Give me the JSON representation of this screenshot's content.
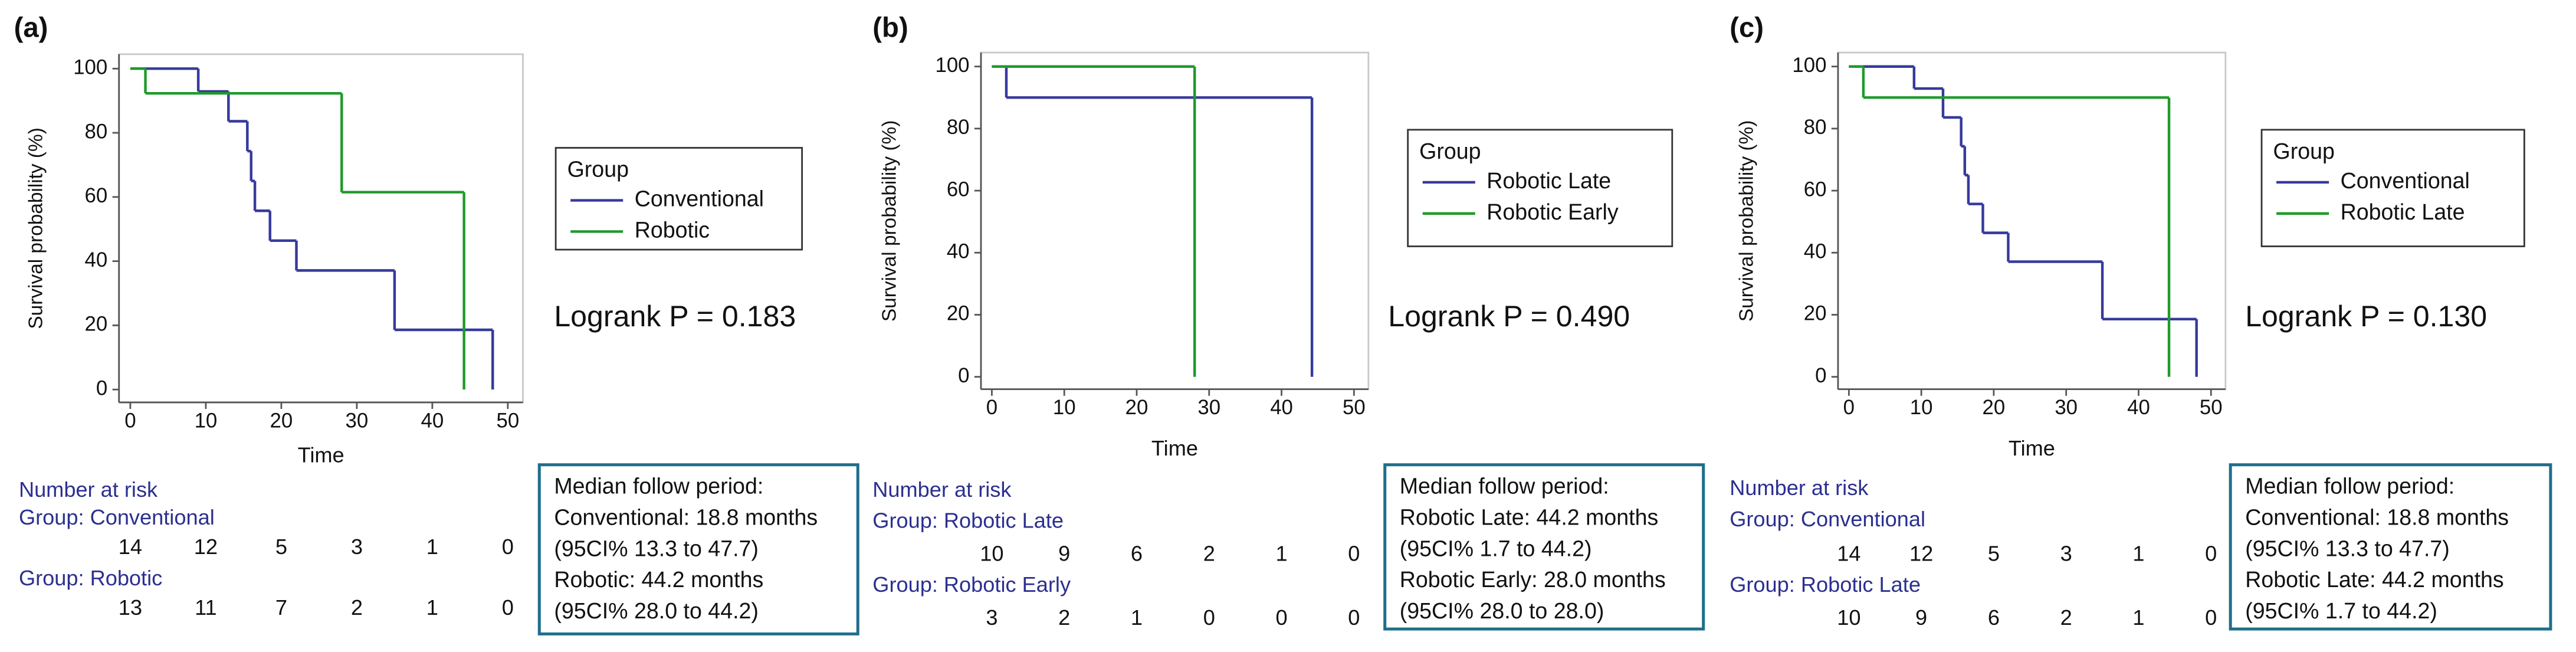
{
  "chart_data": [
    {
      "type": "kaplan-meier",
      "panel_label": "(a)",
      "xlabel": "Time",
      "ylabel": "Survival probability (%)",
      "xlim": [
        -1.5,
        52
      ],
      "ylim": [
        -4,
        104.5
      ],
      "xticks": [
        0,
        10,
        20,
        30,
        40,
        50
      ],
      "yticks": [
        0,
        20,
        40,
        60,
        80,
        100
      ],
      "legend_title": "Group",
      "series": [
        {
          "name": "Conventional",
          "color": "#363a9c",
          "x": [
            0,
            9,
            13,
            15.5,
            16,
            16.5,
            18.5,
            22,
            35,
            48
          ],
          "values": [
            100,
            92.9,
            83.6,
            74.3,
            65,
            55.7,
            46.4,
            37.1,
            18.6,
            0
          ]
        },
        {
          "name": "Robotic",
          "color": "#1f9a2a",
          "x": [
            0,
            2,
            28,
            44.2
          ],
          "values": [
            100,
            92.3,
            61.5,
            0
          ]
        }
      ],
      "annotation": "Logrank P = 0.183",
      "risk_table": {
        "title": "Number at risk",
        "groups": [
          {
            "label": "Group: Conventional",
            "counts": [
              14,
              12,
              5,
              3,
              1,
              0
            ]
          },
          {
            "label": "Group: Robotic",
            "counts": [
              13,
              11,
              7,
              2,
              1,
              0
            ]
          }
        ]
      },
      "median_box": [
        "Median follow period:",
        "Conventional: 18.8 months",
        "(95CI% 13.3 to 47.7)",
        "Robotic: 44.2 months",
        "(95CI% 28.0 to 44.2)"
      ]
    },
    {
      "type": "kaplan-meier",
      "panel_label": "(b)",
      "xlabel": "Time",
      "ylabel": "Survival probability (%)",
      "xlim": [
        -1.5,
        52
      ],
      "ylim": [
        -4,
        104.5
      ],
      "xticks": [
        0,
        10,
        20,
        30,
        40,
        50
      ],
      "yticks": [
        0,
        20,
        40,
        60,
        80,
        100
      ],
      "legend_title": "Group",
      "series": [
        {
          "name": "Robotic Late",
          "color": "#363a9c",
          "x": [
            0,
            2,
            44.2
          ],
          "values": [
            100,
            90,
            0
          ]
        },
        {
          "name": "Robotic Early",
          "color": "#1f9a2a",
          "x": [
            0,
            28
          ],
          "values": [
            100,
            0
          ]
        }
      ],
      "annotation": "Logrank P = 0.490",
      "risk_table": {
        "title": "Number at risk",
        "groups": [
          {
            "label": "Group: Robotic Late",
            "counts": [
              10,
              9,
              6,
              2,
              1,
              0
            ]
          },
          {
            "label": "Group: Robotic Early",
            "counts": [
              3,
              2,
              1,
              0,
              0,
              0
            ]
          }
        ]
      },
      "median_box": [
        "Median follow period:",
        "Robotic Late: 44.2 months",
        "(95CI% 1.7 to 44.2)",
        "Robotic Early: 28.0 months",
        "(95CI% 28.0 to 28.0)"
      ]
    },
    {
      "type": "kaplan-meier",
      "panel_label": "(c)",
      "xlabel": "Time",
      "ylabel": "Survival probability (%)",
      "xlim": [
        -1.5,
        52
      ],
      "ylim": [
        -4,
        104.5
      ],
      "xticks": [
        0,
        10,
        20,
        30,
        40,
        50
      ],
      "yticks": [
        0,
        20,
        40,
        60,
        80,
        100
      ],
      "legend_title": "Group",
      "series": [
        {
          "name": "Conventional",
          "color": "#363a9c",
          "x": [
            0,
            9,
            13,
            15.5,
            16,
            16.5,
            18.5,
            22,
            35,
            48
          ],
          "values": [
            100,
            92.9,
            83.6,
            74.3,
            65,
            55.7,
            46.4,
            37.1,
            18.6,
            0
          ]
        },
        {
          "name": "Robotic Late",
          "color": "#1f9a2a",
          "x": [
            0,
            2,
            44.2
          ],
          "values": [
            100,
            90,
            0
          ]
        }
      ],
      "annotation": "Logrank P = 0.130",
      "risk_table": {
        "title": "Number at risk",
        "groups": [
          {
            "label": "Group: Conventional",
            "counts": [
              14,
              12,
              5,
              3,
              1,
              0
            ]
          },
          {
            "label": "Group: Robotic Late",
            "counts": [
              10,
              9,
              6,
              2,
              1,
              0
            ]
          }
        ]
      },
      "median_box": [
        "Median follow period:",
        "Conventional: 18.8 months",
        "(95CI% 13.3 to 47.7)",
        "Robotic Late: 44.2 months",
        "(95CI% 1.7 to 44.2)"
      ]
    }
  ]
}
